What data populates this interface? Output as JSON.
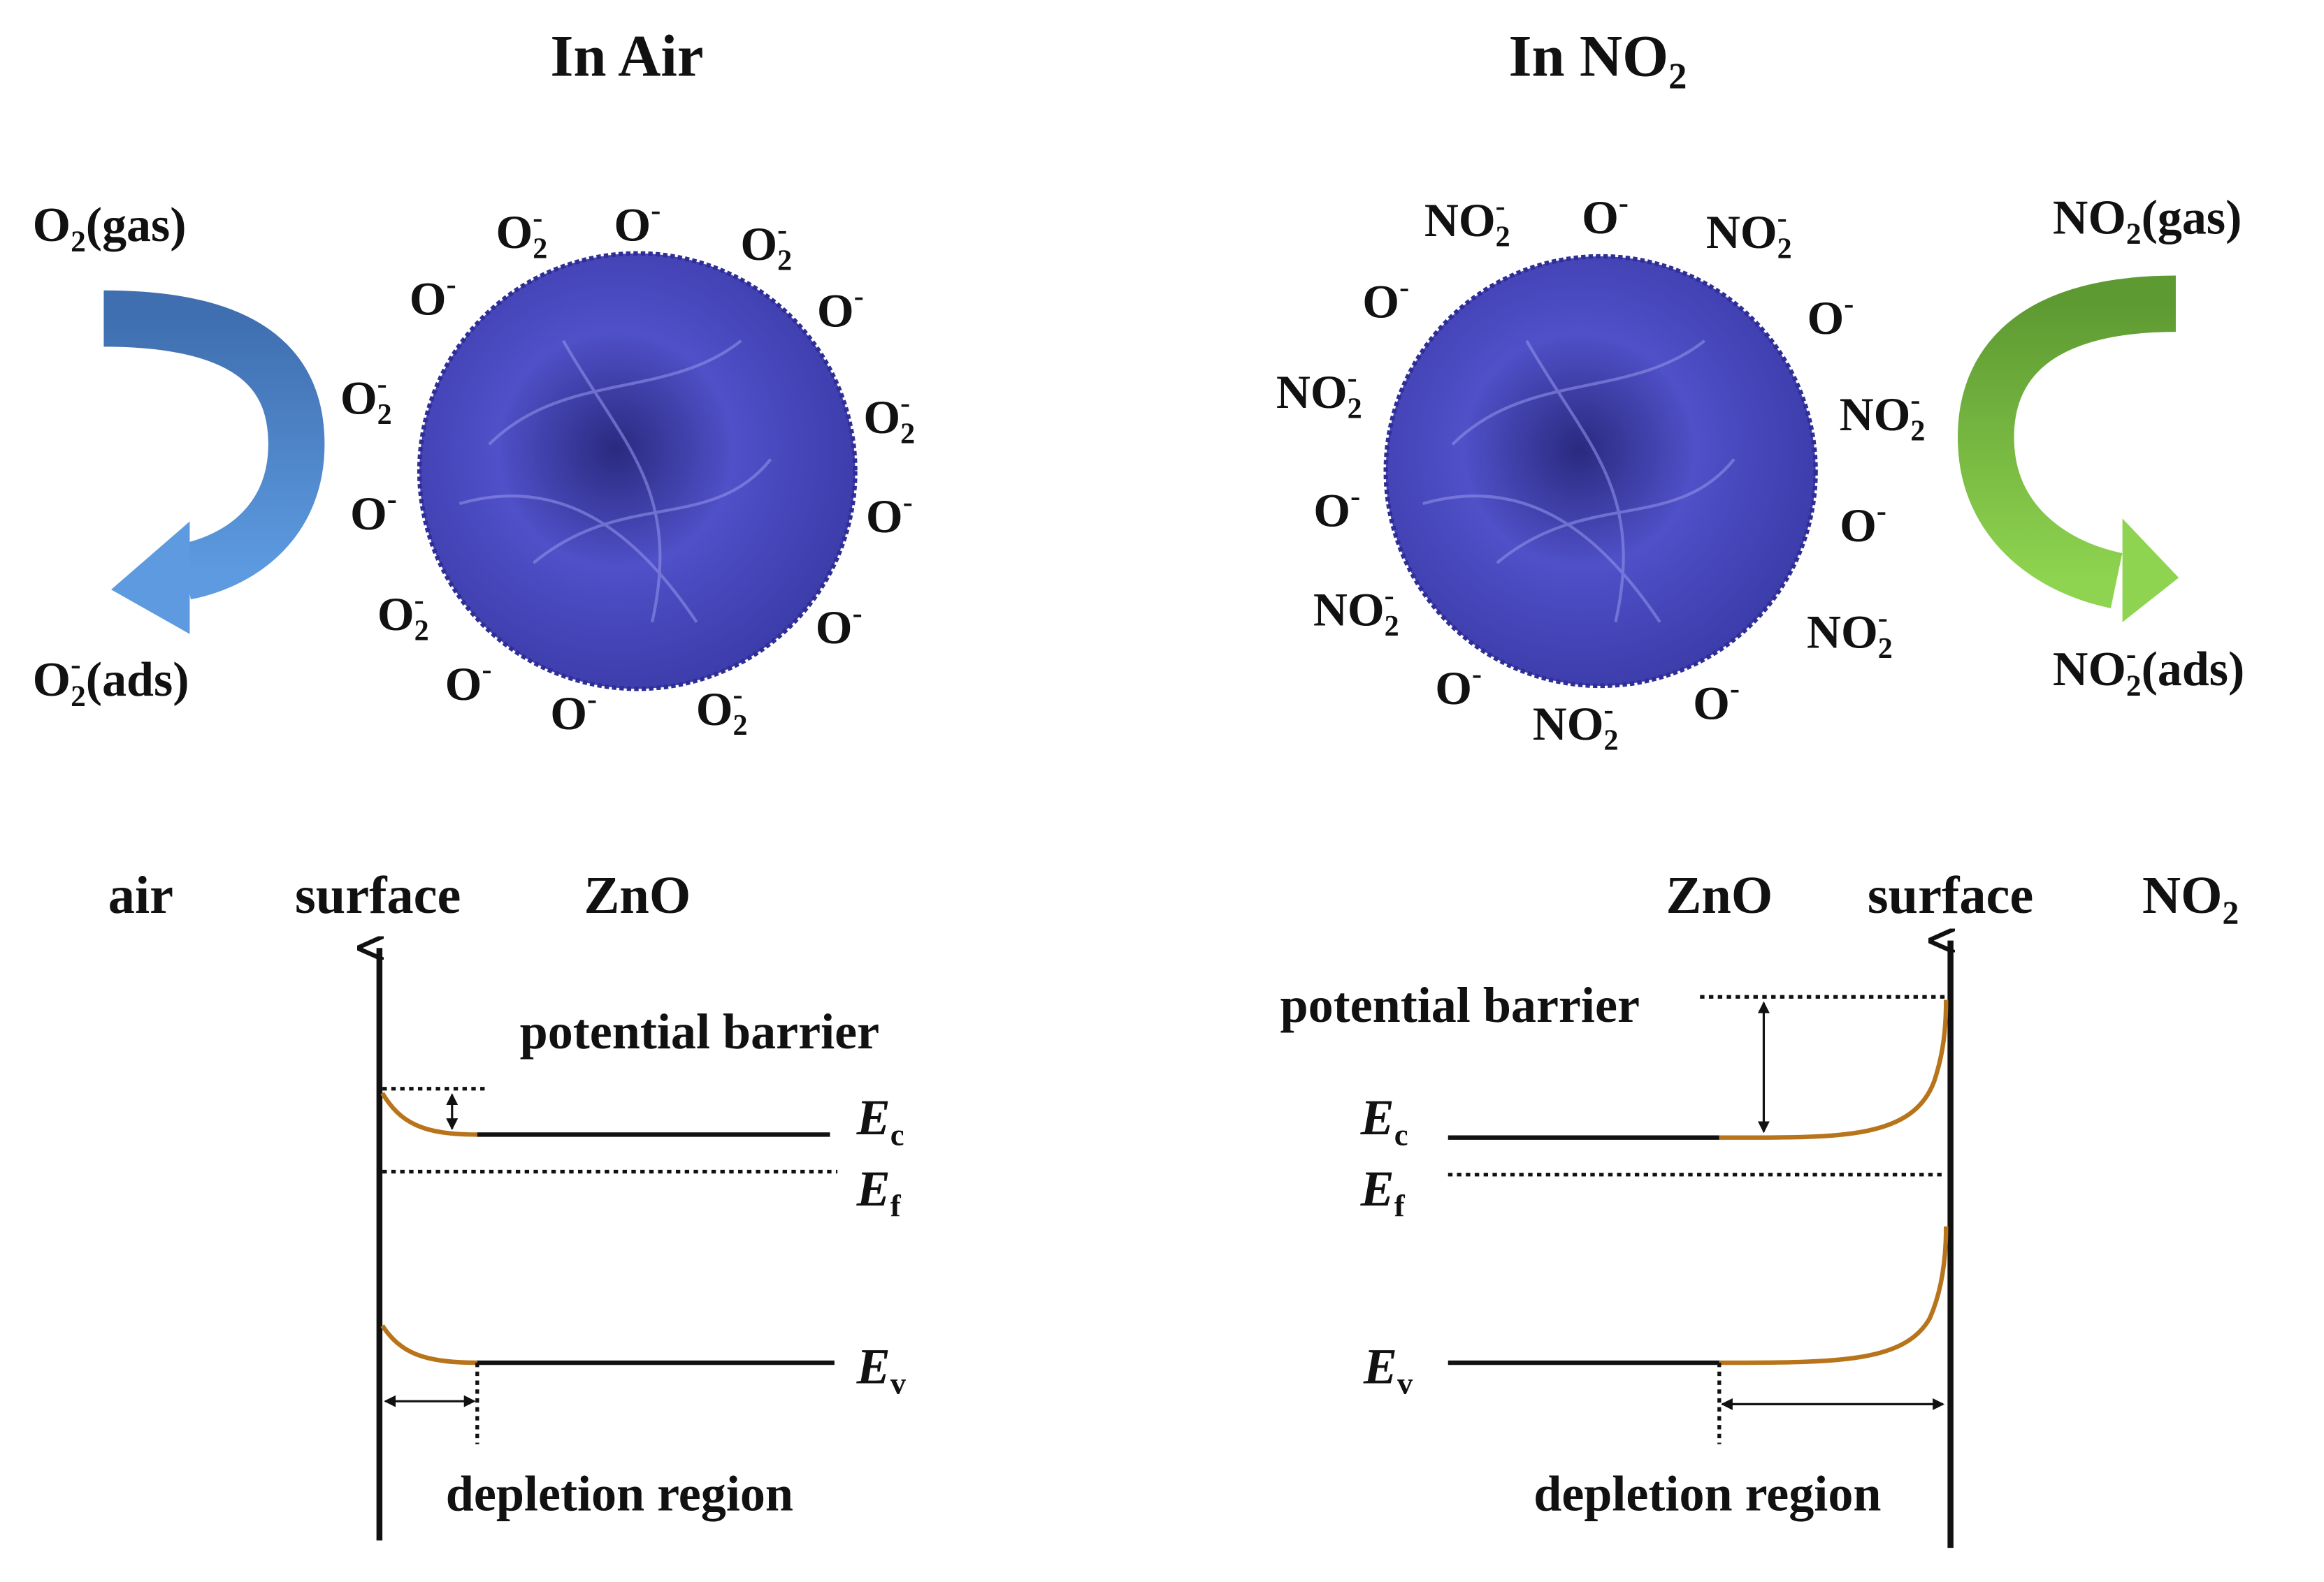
{
  "left_panel": {
    "title": [
      [
        "In Air"
      ]
    ],
    "gas_in": [
      [
        "O"
      ],
      [
        "2",
        "sub"
      ],
      [
        "(gas)"
      ]
    ],
    "gas_out": [
      [
        "O"
      ],
      [
        "2",
        "sub"
      ],
      [
        "-",
        "sup"
      ],
      [
        "(ads)"
      ]
    ],
    "ions": [
      [
        [
          "O"
        ],
        [
          "2",
          "sub"
        ],
        [
          "-",
          "sup"
        ]
      ],
      [
        [
          "O"
        ],
        [
          "-",
          "sup"
        ]
      ],
      [
        [
          "O"
        ],
        [
          "2",
          "sub"
        ],
        [
          "-",
          "sup"
        ]
      ],
      [
        [
          "O"
        ],
        [
          "-",
          "sup"
        ]
      ],
      [
        [
          "O"
        ],
        [
          "-",
          "sup"
        ]
      ],
      [
        [
          "O"
        ],
        [
          "2",
          "sub"
        ],
        [
          "-",
          "sup"
        ]
      ],
      [
        [
          "O"
        ],
        [
          "2",
          "sub"
        ],
        [
          "-",
          "sup"
        ]
      ],
      [
        [
          "O"
        ],
        [
          "-",
          "sup"
        ]
      ],
      [
        [
          "O"
        ],
        [
          "-",
          "sup"
        ]
      ],
      [
        [
          "O"
        ],
        [
          "2",
          "sub"
        ],
        [
          "-",
          "sup"
        ]
      ],
      [
        [
          "O"
        ],
        [
          "-",
          "sup"
        ]
      ],
      [
        [
          "O"
        ],
        [
          "-",
          "sup"
        ]
      ],
      [
        [
          "O"
        ],
        [
          "-",
          "sup"
        ]
      ],
      [
        [
          "O"
        ],
        [
          "2",
          "sub"
        ],
        [
          "-",
          "sup"
        ]
      ]
    ],
    "band": {
      "medium": [
        [
          "air"
        ]
      ],
      "surface": [
        [
          "surface"
        ]
      ],
      "material": [
        [
          "ZnO"
        ]
      ],
      "barrier": [
        [
          "potential barrier"
        ]
      ],
      "ec": [
        [
          "E",
          "italic"
        ],
        [
          "c",
          "sub"
        ]
      ],
      "ef": [
        [
          "E",
          "italic"
        ],
        [
          "f",
          "sub"
        ]
      ],
      "ev": [
        [
          "E",
          "italic"
        ],
        [
          "v",
          "sub"
        ]
      ],
      "depletion": [
        [
          "depletion region"
        ]
      ]
    }
  },
  "right_panel": {
    "title": [
      [
        "In NO"
      ],
      [
        "2",
        "sub"
      ]
    ],
    "gas_in": [
      [
        "NO"
      ],
      [
        "2",
        "sub"
      ],
      [
        "(gas)"
      ]
    ],
    "gas_out": [
      [
        "NO"
      ],
      [
        "2",
        "sub"
      ],
      [
        "-",
        "sup"
      ],
      [
        "(ads)"
      ]
    ],
    "ions": [
      [
        [
          "NO"
        ],
        [
          "2",
          "sub"
        ],
        [
          "-",
          "sup"
        ]
      ],
      [
        [
          "O"
        ],
        [
          "-",
          "sup"
        ]
      ],
      [
        [
          "NO"
        ],
        [
          "2",
          "sub"
        ],
        [
          "-",
          "sup"
        ]
      ],
      [
        [
          "O"
        ],
        [
          "-",
          "sup"
        ]
      ],
      [
        [
          "O"
        ],
        [
          "-",
          "sup"
        ]
      ],
      [
        [
          "NO"
        ],
        [
          "2",
          "sub"
        ],
        [
          "-",
          "sup"
        ]
      ],
      [
        [
          "NO"
        ],
        [
          "2",
          "sub"
        ],
        [
          "-",
          "sup"
        ]
      ],
      [
        [
          "O"
        ],
        [
          "-",
          "sup"
        ]
      ],
      [
        [
          "O"
        ],
        [
          "-",
          "sup"
        ]
      ],
      [
        [
          "NO"
        ],
        [
          "2",
          "sub"
        ],
        [
          "-",
          "sup"
        ]
      ],
      [
        [
          "NO"
        ],
        [
          "2",
          "sub"
        ],
        [
          "-",
          "sup"
        ]
      ],
      [
        [
          "O"
        ],
        [
          "-",
          "sup"
        ]
      ],
      [
        [
          "NO"
        ],
        [
          "2",
          "sub"
        ],
        [
          "-",
          "sup"
        ]
      ],
      [
        [
          "O"
        ],
        [
          "-",
          "sup"
        ]
      ]
    ],
    "band": {
      "material": [
        [
          "ZnO"
        ]
      ],
      "surface": [
        [
          "surface"
        ]
      ],
      "medium": [
        [
          "NO"
        ],
        [
          "2",
          "sub"
        ]
      ],
      "barrier": [
        [
          "potential barrier"
        ]
      ],
      "ec": [
        [
          "E",
          "italic"
        ],
        [
          "c",
          "sub"
        ]
      ],
      "ef": [
        [
          "E",
          "italic"
        ],
        [
          "f",
          "sub"
        ]
      ],
      "ev": [
        [
          "E",
          "italic"
        ],
        [
          "v",
          "sub"
        ]
      ],
      "depletion": [
        [
          "depletion region"
        ]
      ]
    }
  }
}
